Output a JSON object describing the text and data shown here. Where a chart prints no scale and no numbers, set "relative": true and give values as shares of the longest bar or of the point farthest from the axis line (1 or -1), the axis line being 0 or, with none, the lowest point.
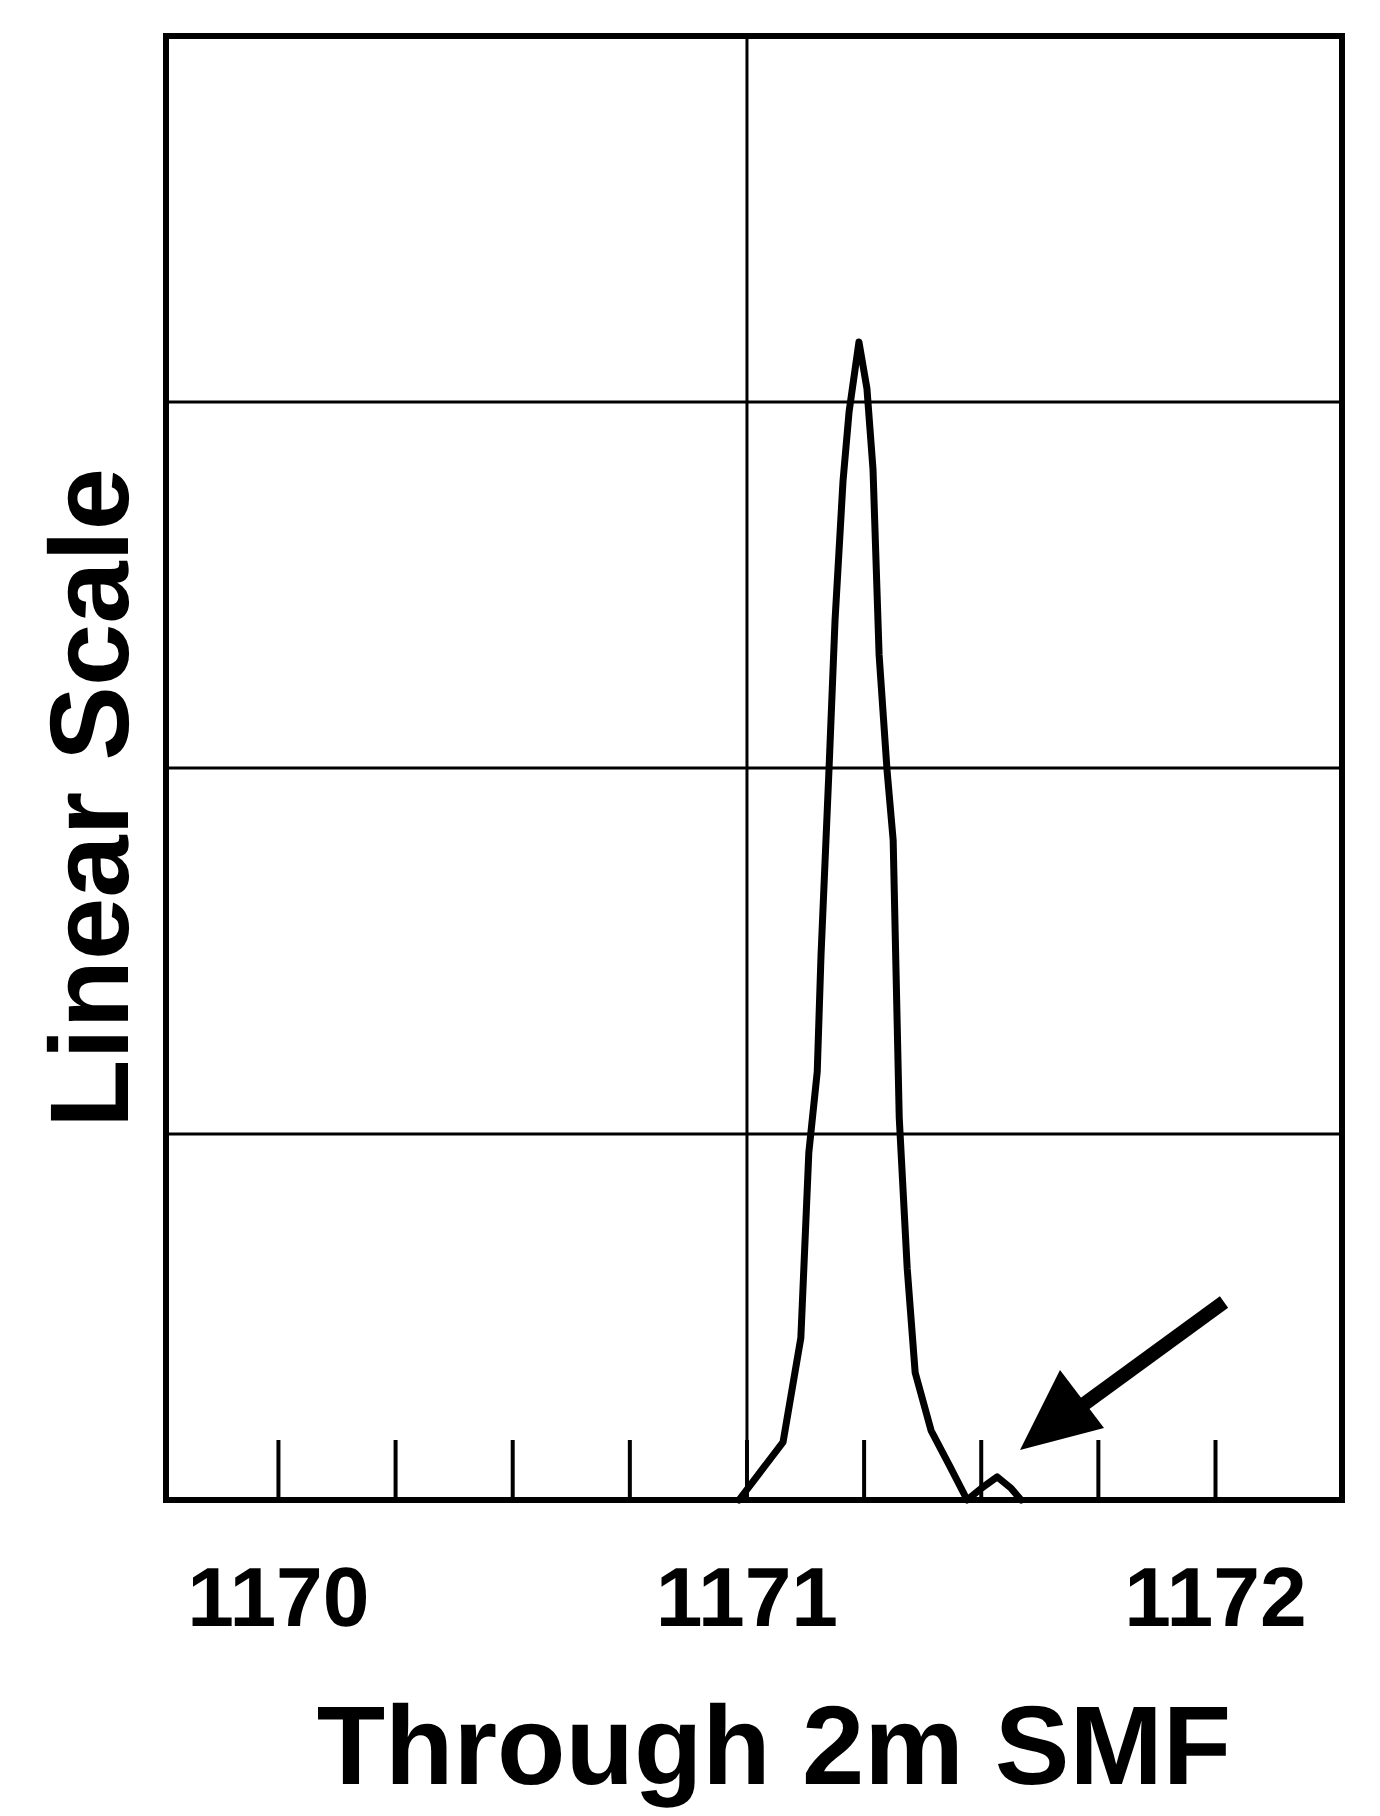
{
  "chart_data": {
    "type": "line",
    "relative": true,
    "xlabel": "Through 2m SMF",
    "ylabel": "Linear Scale",
    "xlim": [
      1169.76,
      1172.27
    ],
    "xticks": [
      1170,
      1171,
      1172
    ],
    "grid": "y",
    "marker": "none",
    "line_style": "solid",
    "ref_lines": [
      {
        "axis": "x",
        "value": 1171,
        "color": "#000000"
      }
    ],
    "series": [
      {
        "color": "#000000",
        "x": [
          1170.983,
          1171.077,
          1171.115,
          1171.132,
          1171.15,
          1171.158,
          1171.175,
          1171.188,
          1171.205,
          1171.218,
          1171.239,
          1171.256,
          1171.269,
          1171.282,
          1171.299,
          1171.312,
          1171.325,
          1171.342,
          1171.359,
          1171.393,
          1171.432,
          1171.47,
          1171.5,
          1171.534,
          1171.564,
          1171.585
        ],
        "values": [
          0,
          0.05,
          0.14,
          0.3,
          0.37,
          0.47,
          0.63,
          0.76,
          0.88,
          0.94,
          1,
          0.96,
          0.89,
          0.73,
          0.63,
          0.57,
          0.33,
          0.2,
          0.11,
          0.06,
          0.03,
          0,
          0.01,
          0.02,
          0.01,
          0
        ]
      }
    ]
  }
}
